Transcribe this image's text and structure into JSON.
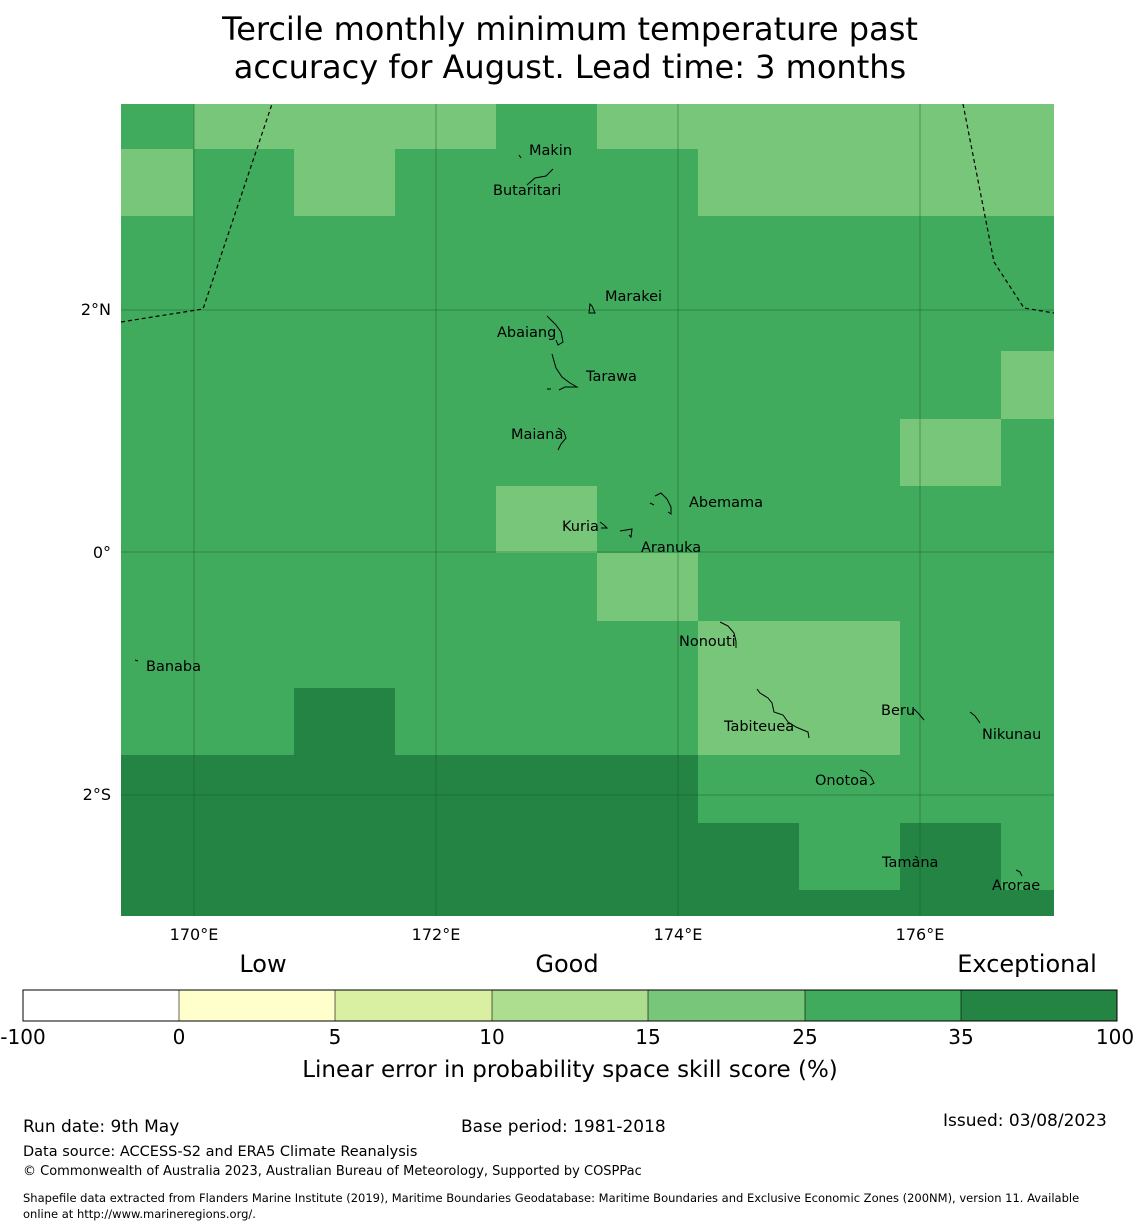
{
  "title_line1": "Tercile monthly minimum temperature past",
  "title_line2": "accuracy for August. Lead time: 3 months",
  "axes": {
    "x_ticks": [
      "170°E",
      "172°E",
      "174°E",
      "176°E"
    ],
    "y_ticks": [
      "2°N",
      "0°",
      "2°S"
    ]
  },
  "colors": {
    "c15_25": "#78c679",
    "c25_35": "#41ab5d",
    "c35_100": "#238443"
  },
  "islands": [
    "Makin",
    "Butaritari",
    "Marakei",
    "Abaiang",
    "Tarawa",
    "Maiana",
    "Abemama",
    "Kuria",
    "Aranuka",
    "Nonouti",
    "Banaba",
    "Beru",
    "Nikunau",
    "Tabiteuea",
    "Onotoa",
    "Tamana",
    "Arorae"
  ],
  "legend": {
    "categories": [
      "Low",
      "Good",
      "Exceptional"
    ],
    "bins": [
      {
        "range": "-100 to 0",
        "color": "#ffffff"
      },
      {
        "range": "0 to 5",
        "color": "#ffffcc"
      },
      {
        "range": "5 to 10",
        "color": "#d9f0a3"
      },
      {
        "range": "10 to 15",
        "color": "#addd8e"
      },
      {
        "range": "15 to 25",
        "color": "#78c679"
      },
      {
        "range": "25 to 35",
        "color": "#41ab5d"
      },
      {
        "range": "35 to 100",
        "color": "#238443"
      }
    ],
    "tick_labels": [
      "-100",
      "0",
      "5",
      "10",
      "15",
      "25",
      "35",
      "100"
    ],
    "axis_label": "Linear error in probability space skill score (%)"
  },
  "footer": {
    "run_date": "Run date: 9th May",
    "base_period": "Base period: 1981-2018",
    "issued": "Issued: 03/08/2023",
    "data_source": "Data source: ACCESS-S2 and ERA5 Climate Reanalysis",
    "copyright": "© Commonwealth of Australia 2023, Australian Bureau of Meteorology, Supported by COSPPac",
    "shapefile_line1": "Shapefile data extracted from Flanders Marine Institute (2019), Maritime Boundaries Geodatabase: Maritime Boundaries and Exclusive Economic Zones (200NM), version 11. Available",
    "shapefile_line2": "online at http://www.marineregions.org/."
  }
}
